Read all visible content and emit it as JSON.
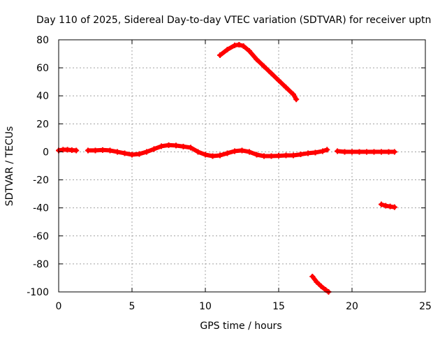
{
  "chart_data": {
    "type": "scatter",
    "title": "Day 110 of 2025, Sidereal Day-to-day VTEC variation (SDTVAR) for receiver uptn",
    "xlabel": "GPS time / hours",
    "ylabel": "SDTVAR / TECUs",
    "xlim": [
      0,
      25
    ],
    "ylim": [
      -100,
      80
    ],
    "xticks": [
      0,
      5,
      10,
      15,
      20,
      25
    ],
    "yticks": [
      -100,
      -80,
      -60,
      -40,
      -20,
      0,
      20,
      40,
      60,
      80
    ],
    "grid": true,
    "legend": "none",
    "series_color": "#ff0000",
    "series": [
      {
        "name": "main-trace-a",
        "x": [
          0.0,
          0.3,
          0.6,
          0.9,
          1.2
        ],
        "y": [
          1,
          1.5,
          1.5,
          1.2,
          1
        ]
      },
      {
        "name": "main-trace-b",
        "x": [
          2.0,
          2.5,
          3.0,
          3.5,
          4.0,
          4.5,
          5.0,
          5.5,
          6.0,
          6.5,
          7.0,
          7.5,
          8.0,
          8.5,
          9.0,
          9.5,
          10.0,
          10.5,
          11.0,
          11.5,
          12.0,
          12.5,
          13.0,
          13.5,
          14.0,
          14.5,
          15.0,
          15.5,
          16.0,
          16.5,
          17.0,
          17.5,
          18.0,
          18.3
        ],
        "y": [
          1,
          1,
          1.3,
          1,
          0,
          -1,
          -2,
          -1.5,
          0,
          2,
          4,
          4.8,
          4.5,
          3.8,
          3,
          0,
          -2,
          -3,
          -2.5,
          -1,
          0.5,
          1,
          0,
          -2,
          -3,
          -3,
          -2.8,
          -2.5,
          -2.5,
          -1.8,
          -1,
          -0.5,
          0.5,
          1.5
        ]
      },
      {
        "name": "main-trace-c",
        "x": [
          19.0,
          19.5,
          20.0,
          20.5,
          21.0,
          21.5,
          22.0,
          22.5,
          22.9
        ],
        "y": [
          0.5,
          0,
          0,
          0,
          0,
          0,
          0,
          0,
          0
        ]
      },
      {
        "name": "upper-arc",
        "x": [
          11.0,
          11.5,
          12.0,
          12.3,
          12.6,
          13.0,
          13.5,
          14.0,
          14.5,
          15.0,
          15.5,
          16.0,
          16.2
        ],
        "y": [
          69,
          73,
          76,
          76.5,
          75.5,
          72,
          66,
          61,
          56,
          51,
          46,
          41,
          37.5
        ]
      },
      {
        "name": "lower-arc",
        "x": [
          17.3,
          17.6,
          17.9,
          18.2,
          18.4
        ],
        "y": [
          -89,
          -93,
          -96,
          -98.5,
          -100
        ]
      },
      {
        "name": "right-segment",
        "x": [
          22.0,
          22.3,
          22.6,
          22.9
        ],
        "y": [
          -37.5,
          -38.5,
          -39,
          -39.5
        ]
      }
    ]
  }
}
